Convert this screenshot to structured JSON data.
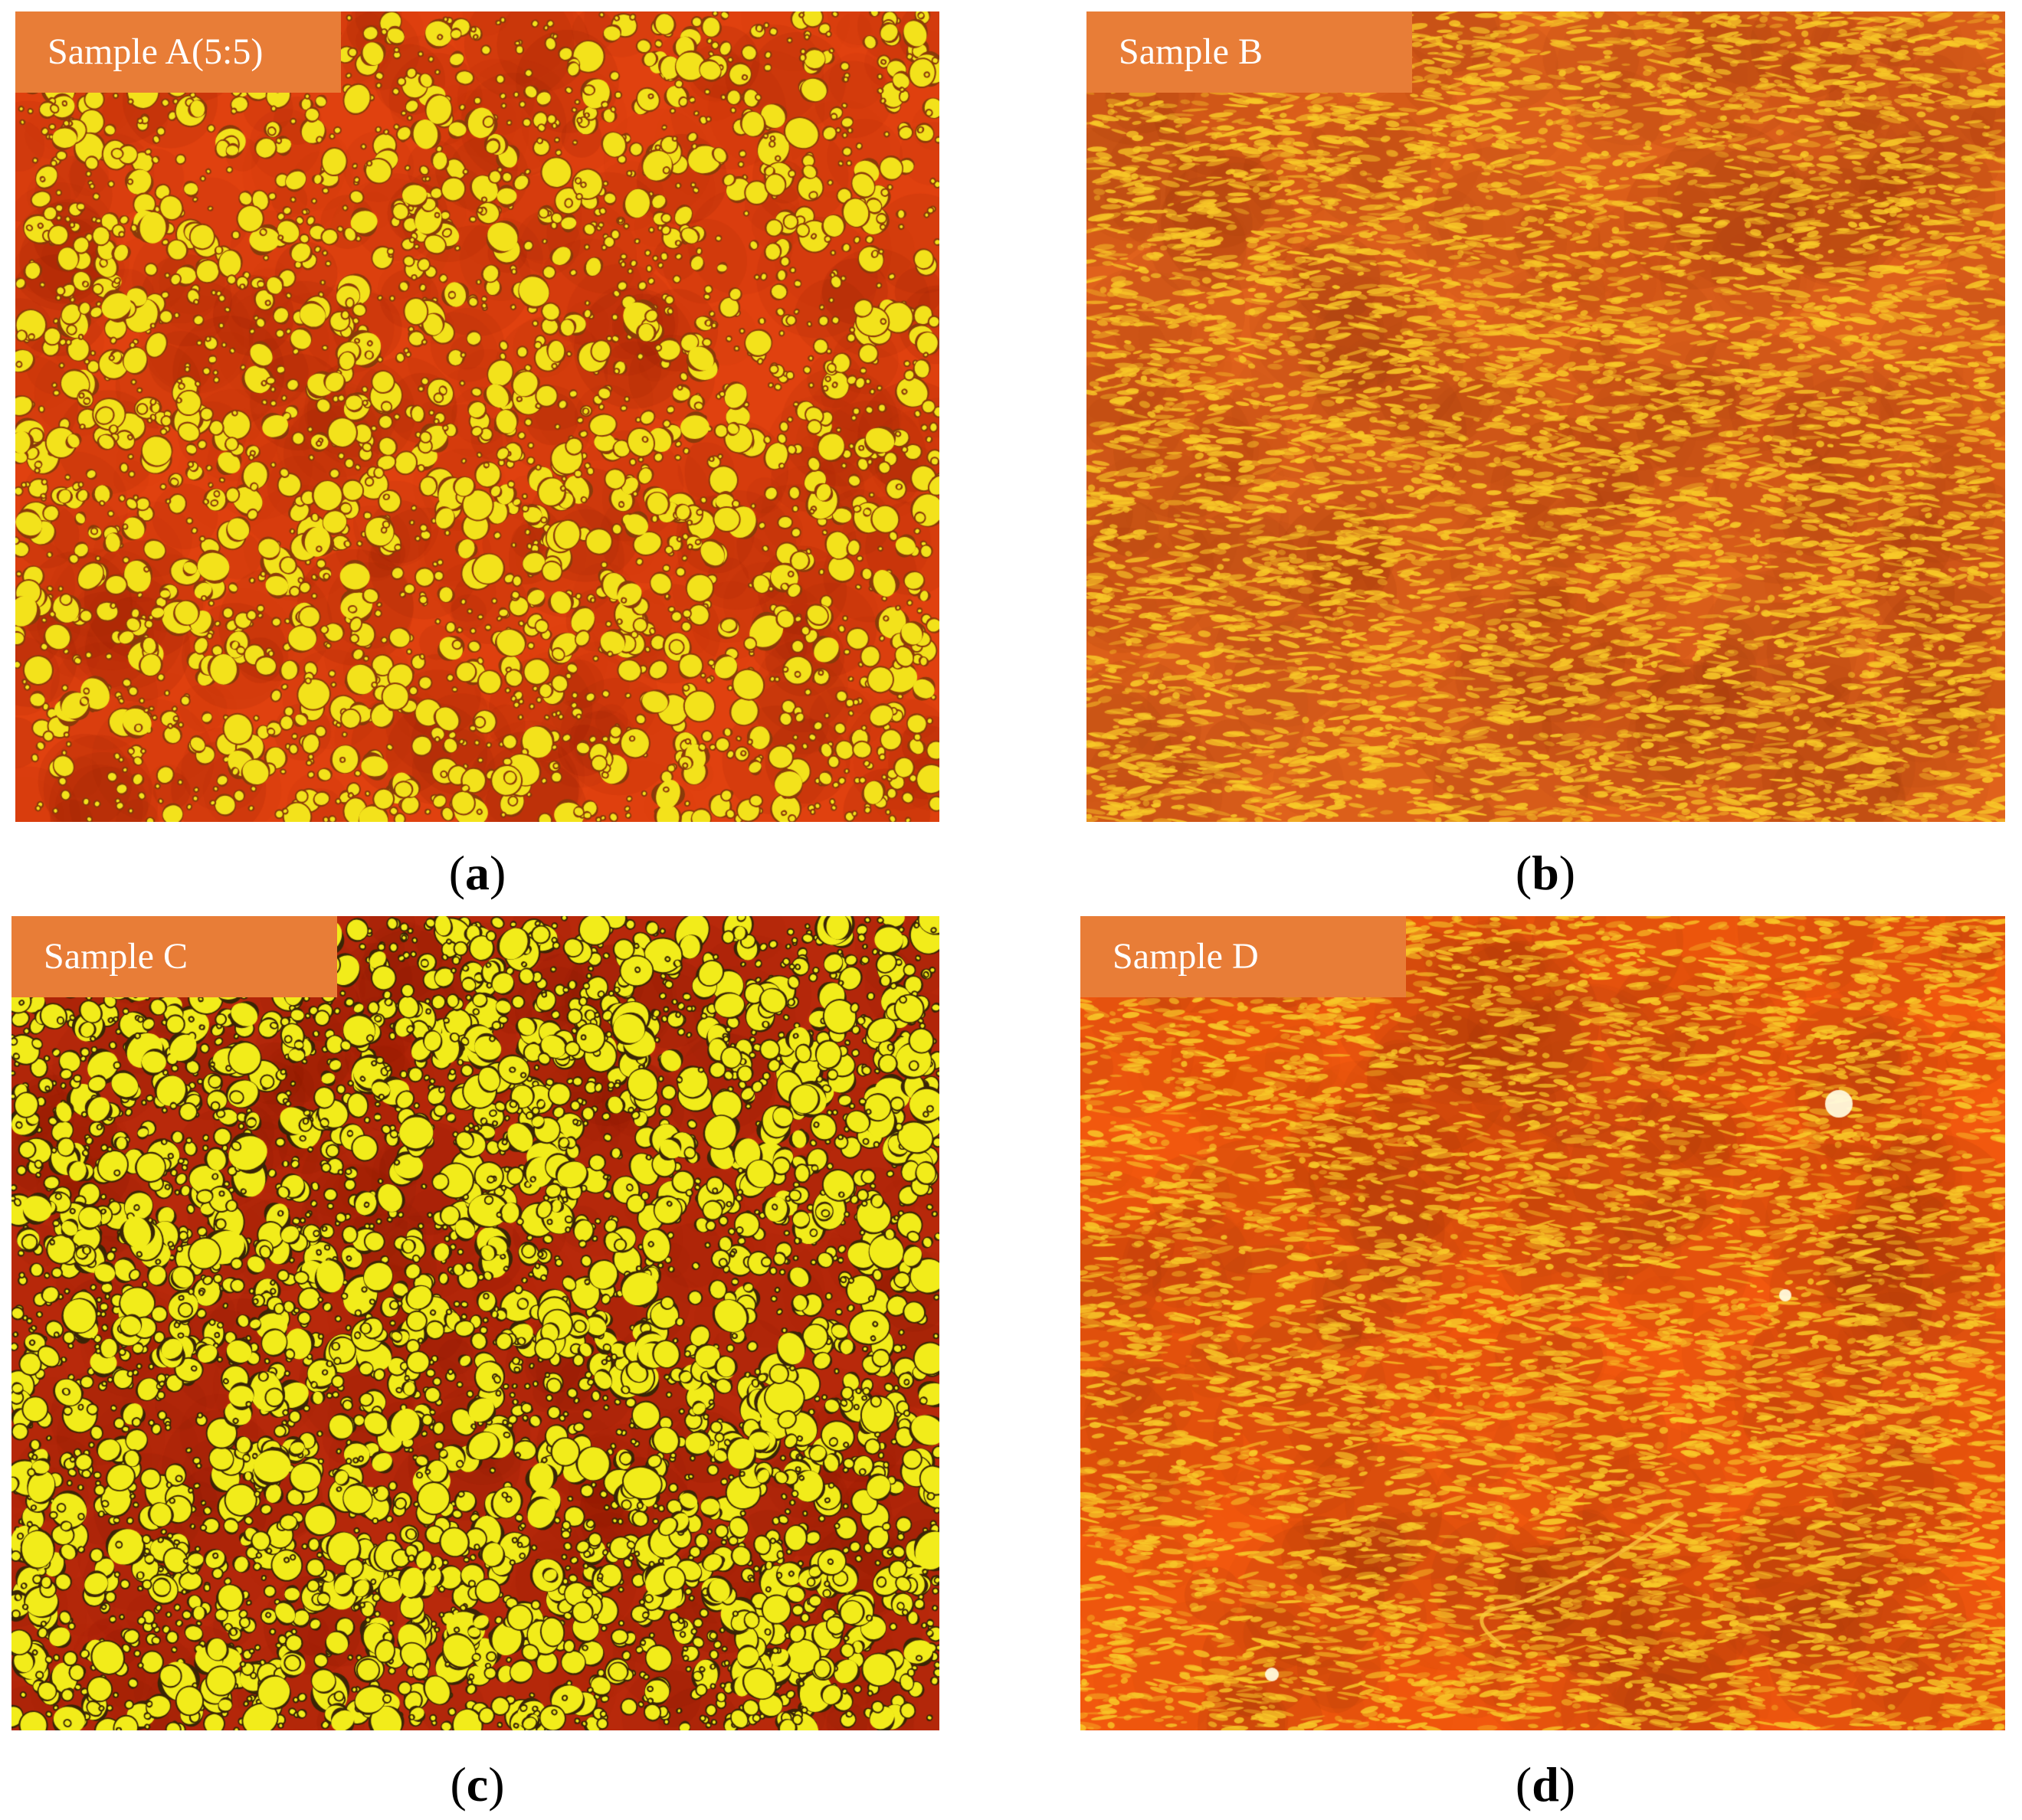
{
  "panels": [
    {
      "id": "a",
      "tag": "Sample A(5:5)",
      "letter": "a",
      "colors": {
        "background": "#e0410f",
        "particle": "#f3e21b",
        "edge": "#8a3a0a"
      },
      "texture": "droplets"
    },
    {
      "id": "b",
      "tag": "Sample B",
      "letter": "b",
      "colors": {
        "background": "#e0621c",
        "particle": "#f7b31e",
        "edge": "#b0501a"
      },
      "texture": "fine-streaks"
    },
    {
      "id": "c",
      "tag": "Sample C",
      "letter": "c",
      "colors": {
        "background": "#b8290b",
        "particle": "#f2ec1a",
        "edge": "#3a2506"
      },
      "texture": "dense-droplets"
    },
    {
      "id": "d",
      "tag": "Sample D",
      "letter": "d",
      "colors": {
        "background": "#f2580e",
        "particle": "#f8a21a",
        "edge": "#d24a10"
      },
      "texture": "fine-streaks"
    }
  ]
}
